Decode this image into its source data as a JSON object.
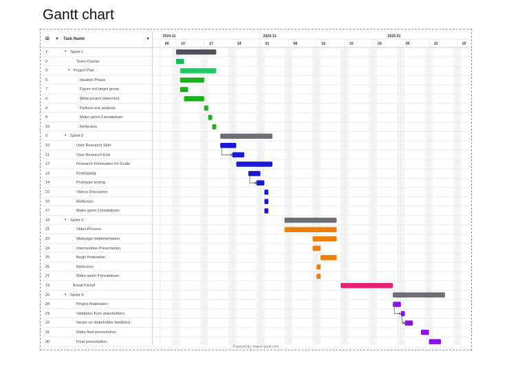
{
  "title": "Gantt chart",
  "footer": "Powered by: frappe-gantt.com",
  "columns": {
    "id": "ID",
    "name": "Task Name"
  },
  "chart_data": {
    "type": "gantt",
    "months": [
      {
        "label": "2024-11",
        "date": "2024-11-06"
      },
      {
        "label": "2024-12",
        "date": "2024-12-01"
      },
      {
        "label": "2025-01",
        "date": "2025-01-01"
      }
    ],
    "week_ticks": [
      {
        "label": "06",
        "date": "2024-11-06"
      },
      {
        "label": "10",
        "date": "2024-11-10"
      },
      {
        "label": "17",
        "date": "2024-11-17"
      },
      {
        "label": "24",
        "date": "2024-11-24"
      },
      {
        "label": "01",
        "date": "2024-12-01"
      },
      {
        "label": "08",
        "date": "2024-12-08"
      },
      {
        "label": "15",
        "date": "2024-12-15"
      },
      {
        "label": "22",
        "date": "2024-12-22"
      },
      {
        "label": "29",
        "date": "2024-12-29"
      },
      {
        "label": "05",
        "date": "2025-01-05"
      },
      {
        "label": "12",
        "date": "2025-01-12"
      },
      {
        "label": "19",
        "date": "2025-01-19"
      }
    ],
    "range": [
      "2024-11-04",
      "2025-01-22"
    ],
    "tasks": [
      {
        "id": "1",
        "name": "Sprint 1",
        "level": 0,
        "group": true,
        "start": "2024-11-10",
        "end": "2024-11-19",
        "color": "#4f5358"
      },
      {
        "id": "2",
        "name": "Team Charter",
        "level": 1,
        "start": "2024-11-10",
        "end": "2024-11-11",
        "color": "#1ab85a"
      },
      {
        "id": "3",
        "name": "Project Plan",
        "level": 1,
        "group": true,
        "start": "2024-11-11",
        "end": "2024-11-19",
        "color": "#1fca63"
      },
      {
        "id": "5",
        "name": "Ideation Phase",
        "level": 2,
        "start": "2024-11-11",
        "end": "2024-11-16",
        "color": "#19b21a"
      },
      {
        "id": "7",
        "name": "Figure out target group",
        "level": 2,
        "start": "2024-11-11",
        "end": "2024-11-12",
        "color": "#19b21a"
      },
      {
        "id": "6",
        "name": "Write project statement",
        "level": 2,
        "start": "2024-11-12",
        "end": "2024-11-16",
        "color": "#19b21a"
      },
      {
        "id": "4",
        "name": "Perform risk analysis",
        "level": 2,
        "start": "2024-11-17",
        "end": "2024-11-17",
        "color": "#19b21a"
      },
      {
        "id": "8",
        "name": "Make sprint 2 breakdown",
        "level": 2,
        "start": "2024-11-18",
        "end": "2024-11-18",
        "color": "#19b21a"
      },
      {
        "id": "16",
        "name": "Reflection",
        "level": 2,
        "start": "2024-11-19",
        "end": "2024-11-19",
        "color": "#19b21a"
      },
      {
        "id": "9",
        "name": "Sprint 2",
        "level": 0,
        "group": true,
        "start": "2024-11-21",
        "end": "2024-12-03",
        "color": "#6c7074"
      },
      {
        "id": "10",
        "name": "User Research Start",
        "level": 1,
        "start": "2024-11-21",
        "end": "2024-11-24",
        "color": "#1a1ad6"
      },
      {
        "id": "11",
        "name": "User Research End",
        "level": 1,
        "start": "2024-11-24",
        "end": "2024-11-26",
        "color": "#1a1ad6"
      },
      {
        "id": "12",
        "name": "Research Information for Guide",
        "level": 1,
        "start": "2024-11-25",
        "end": "2024-12-03",
        "color": "#1a1ad6"
      },
      {
        "id": "13",
        "name": "Prototyping",
        "level": 1,
        "start": "2024-11-28",
        "end": "2024-11-30",
        "color": "#1a1ad6"
      },
      {
        "id": "14",
        "name": "Prototype testing",
        "level": 1,
        "start": "2024-11-30",
        "end": "2024-12-01",
        "color": "#1a1ad6"
      },
      {
        "id": "22",
        "name": "Videos Discussion",
        "level": 1,
        "start": "2024-12-02",
        "end": "2024-12-02",
        "color": "#1a1ad6"
      },
      {
        "id": "15",
        "name": "Reflection",
        "level": 1,
        "start": "2024-12-02",
        "end": "2024-12-02",
        "color": "#1a1ad6"
      },
      {
        "id": "17",
        "name": "Make sprint 3 breakdown",
        "level": 1,
        "start": "2024-12-02",
        "end": "2024-12-02",
        "color": "#1a1ad6"
      },
      {
        "id": "18",
        "name": "Sprint 3",
        "level": 0,
        "group": true,
        "start": "2024-12-07",
        "end": "2024-12-19",
        "color": "#6c7074"
      },
      {
        "id": "21",
        "name": "Video Process",
        "level": 1,
        "start": "2024-12-07",
        "end": "2024-12-19",
        "color": "#f07f0a"
      },
      {
        "id": "23",
        "name": "Webpage implementation",
        "level": 1,
        "start": "2024-12-14",
        "end": "2024-12-19",
        "color": "#f07f0a"
      },
      {
        "id": "24",
        "name": "Intermediate Presentation",
        "level": 1,
        "start": "2024-12-14",
        "end": "2024-12-15",
        "color": "#f07f0a"
      },
      {
        "id": "25",
        "name": "Begin finalization",
        "level": 1,
        "start": "2024-12-16",
        "end": "2024-12-19",
        "color": "#f07f0a"
      },
      {
        "id": "26",
        "name": "Reflection",
        "level": 1,
        "start": "2024-12-15",
        "end": "2024-12-15",
        "color": "#f07f0a"
      },
      {
        "id": "27",
        "name": "Make sprint 4 breakdown",
        "level": 1,
        "start": "2024-12-15",
        "end": "2024-12-15",
        "color": "#f07f0a"
      },
      {
        "id": "19",
        "name": "Break Period",
        "level": 0,
        "start": "2024-12-21",
        "end": "2025-01-02",
        "color": "#ea1f76"
      },
      {
        "id": "20",
        "name": "Sprint 4",
        "level": 0,
        "group": true,
        "start": "2025-01-03",
        "end": "2025-01-15",
        "color": "#6c7074"
      },
      {
        "id": "28",
        "name": "Project finalization",
        "level": 1,
        "start": "2025-01-03",
        "end": "2025-01-04",
        "color": "#8d12e6"
      },
      {
        "id": "29",
        "name": "Validation from stakeholders",
        "level": 1,
        "start": "2025-01-05",
        "end": "2025-01-05",
        "color": "#8d12e6"
      },
      {
        "id": "32",
        "name": "Iterate on stakeholder feedback",
        "level": 1,
        "start": "2025-01-06",
        "end": "2025-01-07",
        "color": "#8d12e6"
      },
      {
        "id": "31",
        "name": "Make final presentation",
        "level": 1,
        "start": "2025-01-10",
        "end": "2025-01-11",
        "color": "#8d12e6"
      },
      {
        "id": "30",
        "name": "Final presentation",
        "level": 1,
        "start": "2025-01-12",
        "end": "2025-01-14",
        "color": "#8d12e6"
      }
    ],
    "dependencies": [
      [
        "10",
        "11"
      ],
      [
        "13",
        "14"
      ],
      [
        "28",
        "29"
      ],
      [
        "29",
        "32"
      ]
    ]
  }
}
